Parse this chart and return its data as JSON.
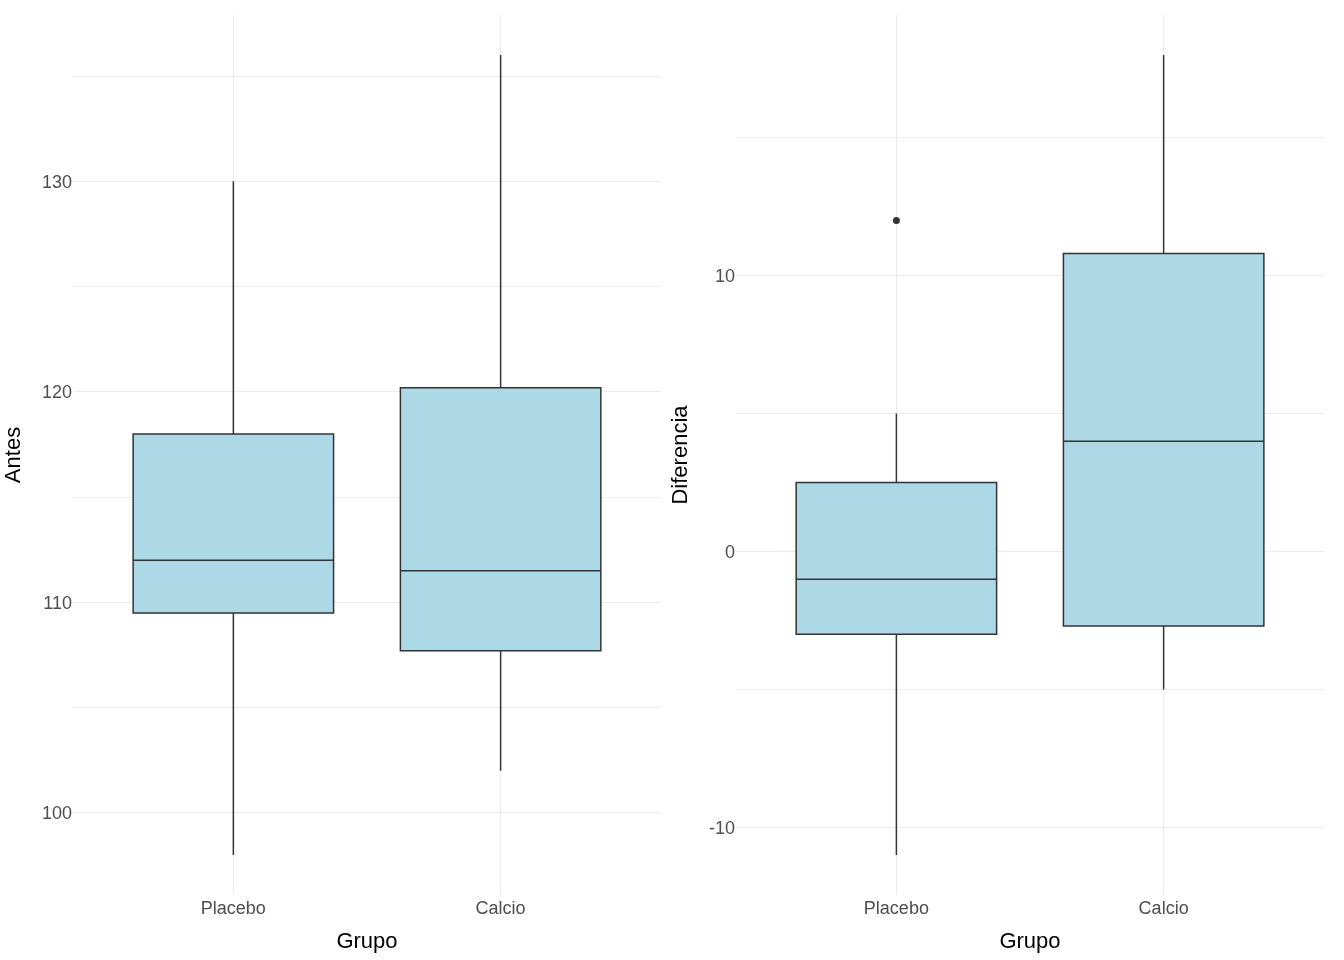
{
  "chart_data": [
    {
      "type": "box",
      "xlabel": "Grupo",
      "ylabel": "Antes",
      "categories": [
        "Placebo",
        "Calcio"
      ],
      "color": "#add8e6",
      "boxes": [
        {
          "low": 98,
          "q1": 109.5,
          "median": 112,
          "q3": 118,
          "high": 130
        },
        {
          "low": 102,
          "q1": 107.7,
          "median": 111.5,
          "q3": 120.2,
          "high": 136
        }
      ],
      "ylim": [
        96.1,
        137.9
      ],
      "yticks": [
        100,
        110,
        120,
        130,
        {
          "value": 105,
          "label": null
        },
        {
          "value": 115,
          "label": null
        },
        {
          "value": 125,
          "label": null
        },
        {
          "value": 135,
          "label": null
        }
      ],
      "grid": true
    },
    {
      "type": "box",
      "xlabel": "Grupo",
      "ylabel": "Diferencia",
      "categories": [
        "Placebo",
        "Calcio"
      ],
      "color": "#add8e6",
      "boxes": [
        {
          "low": -11,
          "q1": -3,
          "median": -1,
          "q3": 2.5,
          "high": 5,
          "outliers": [
            12
          ]
        },
        {
          "low": -5,
          "q1": -2.7,
          "median": 4,
          "q3": 10.8,
          "high": 18
        }
      ],
      "ylim": [
        -12.45,
        19.45
      ],
      "yticks": [
        -10,
        0,
        10,
        {
          "value": -5,
          "label": null
        },
        {
          "value": 5,
          "label": null
        },
        {
          "value": 15,
          "label": null
        }
      ],
      "grid": true
    }
  ]
}
